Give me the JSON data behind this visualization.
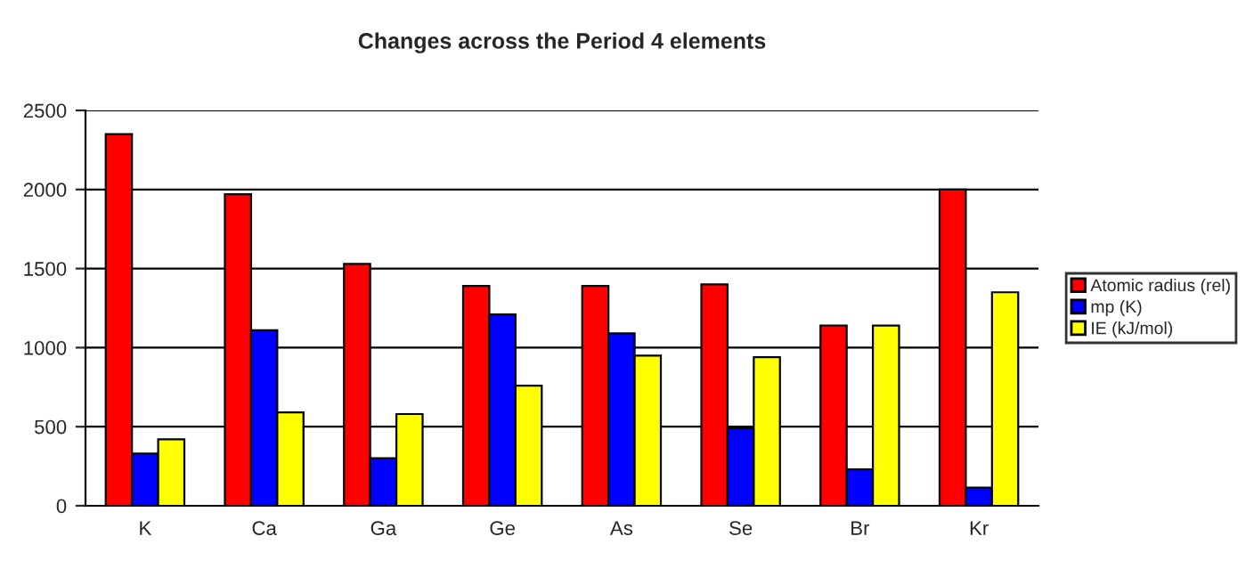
{
  "chart_data": {
    "type": "bar",
    "title": "Changes across the Period 4 elements",
    "categories": [
      "K",
      "Ca",
      "Ga",
      "Ge",
      "As",
      "Se",
      "Br",
      "Kr"
    ],
    "series": [
      {
        "name": "Atomic radius (rel)",
        "color": "#ff0000",
        "values": [
          2350,
          1970,
          1530,
          1390,
          1390,
          1400,
          1140,
          2000
        ]
      },
      {
        "name": "mp (K)",
        "color": "#0000ff",
        "values": [
          330,
          1110,
          300,
          1210,
          1090,
          490,
          230,
          115
        ]
      },
      {
        "name": "IE (kJ/mol)",
        "color": "#ffff00",
        "values": [
          420,
          590,
          580,
          760,
          950,
          940,
          1140,
          1350
        ]
      }
    ],
    "ylim": [
      0,
      2500
    ],
    "yticks": [
      0,
      500,
      1000,
      1500,
      2000,
      2500
    ],
    "grid": "y",
    "legend": "right"
  }
}
